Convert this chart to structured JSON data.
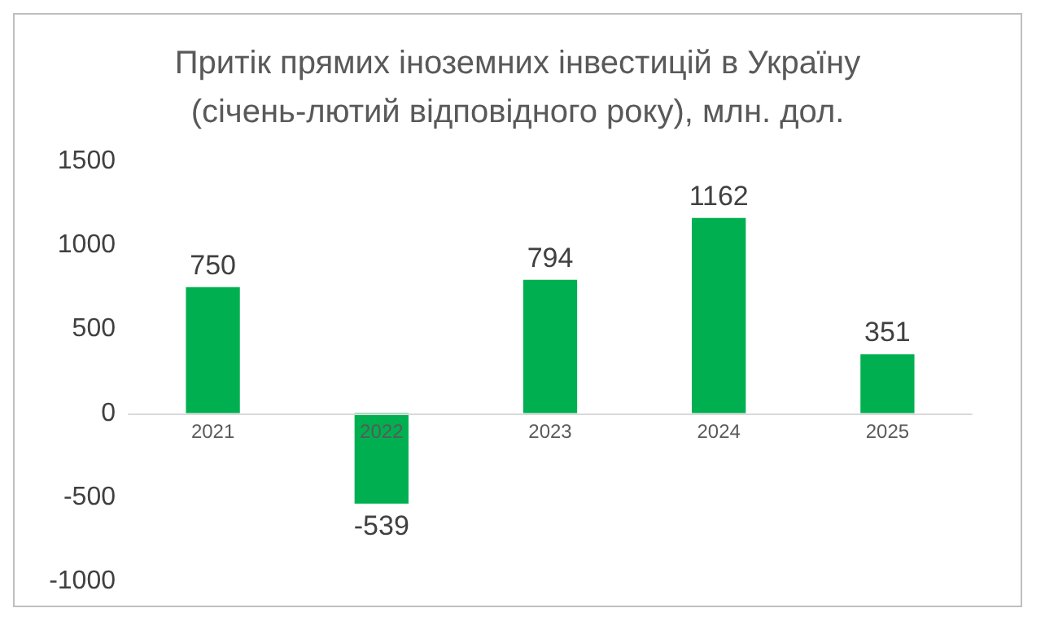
{
  "chart_data": {
    "type": "bar",
    "title": "Притік прямих іноземних інвестицій в Україну\n(січень-лютий відповідного року), млн. дол.",
    "categories": [
      "2021",
      "2022",
      "2023",
      "2024",
      "2025"
    ],
    "values": [
      750,
      -539,
      794,
      1162,
      351
    ],
    "color": "#00b050",
    "ylim": [
      -1000,
      1500
    ],
    "yticks": [
      -1000,
      -500,
      0,
      500,
      1000,
      1500
    ],
    "grid": false,
    "data_labels": true
  }
}
